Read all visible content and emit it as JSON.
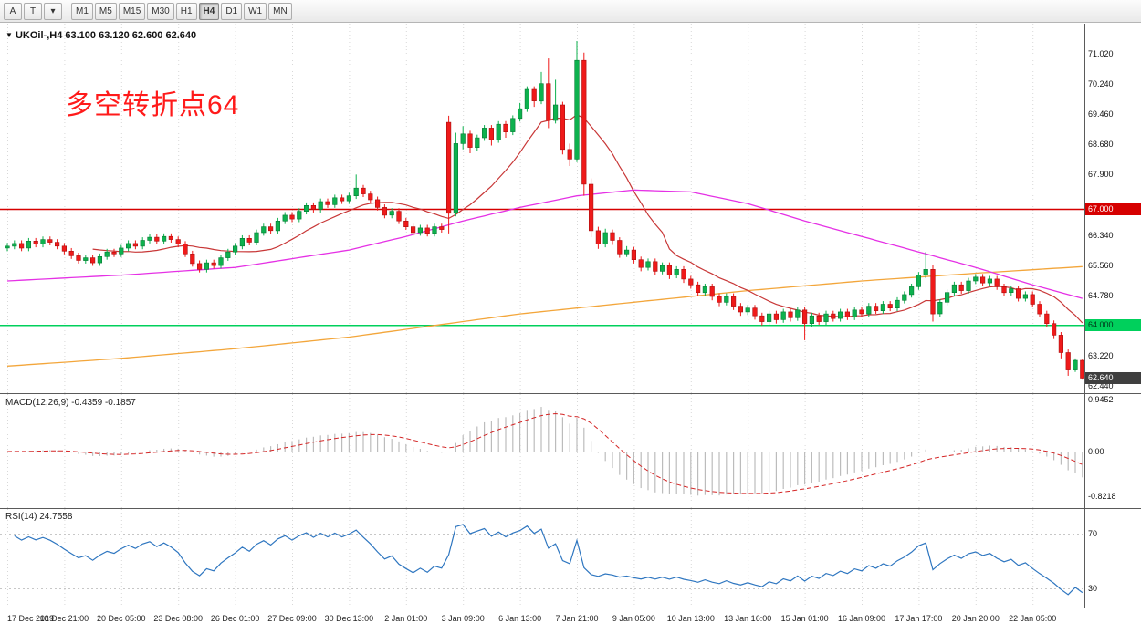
{
  "toolbar": {
    "tools": [
      {
        "name": "annotate",
        "label": "A"
      },
      {
        "name": "text",
        "label": "T"
      },
      {
        "name": "draw-dropdown",
        "label": "▾"
      }
    ],
    "timeframes": [
      "M1",
      "M5",
      "M15",
      "M30",
      "H1",
      "H4",
      "D1",
      "W1",
      "MN"
    ],
    "active_timeframe": "H4"
  },
  "chart": {
    "dropdown_icon": "▼",
    "symbol_line": "UKOil-,H4 63.100 63.120 62.600 62.640",
    "annotation": {
      "text": "多空转折点64",
      "color": "#ff1a1a"
    },
    "price_ticks": [
      {
        "v": 71.02,
        "label": "71.020"
      },
      {
        "v": 70.24,
        "label": "70.240"
      },
      {
        "v": 69.46,
        "label": "69.460"
      },
      {
        "v": 68.68,
        "label": "68.680"
      },
      {
        "v": 67.9,
        "label": "67.900"
      },
      {
        "v": 66.34,
        "label": "66.340"
      },
      {
        "v": 65.56,
        "label": "65.560"
      },
      {
        "v": 64.78,
        "label": "64.780"
      },
      {
        "v": 63.22,
        "label": "63.220"
      },
      {
        "v": 62.44,
        "label": "62.440"
      }
    ],
    "levels": [
      {
        "v": 67.0,
        "label": "67.000",
        "color": "#d60000",
        "text": "#ffffff"
      },
      {
        "v": 64.0,
        "label": "64.000",
        "color": "#00d05c",
        "text": "#00341a"
      }
    ],
    "current_price": {
      "v": 62.64,
      "label": "62.640",
      "color": "#3f3f3f",
      "text": "#ffffff"
    }
  },
  "series": {
    "candles": [
      [
        66.0,
        66.13,
        65.92,
        66.05
      ],
      [
        66.05,
        66.2,
        65.97,
        66.12
      ],
      [
        66.12,
        66.2,
        65.92,
        66.0
      ],
      [
        66.0,
        66.26,
        65.92,
        66.18
      ],
      [
        66.18,
        66.26,
        66.02,
        66.1
      ],
      [
        66.1,
        66.3,
        66.02,
        66.22
      ],
      [
        66.22,
        66.3,
        66.07,
        66.15
      ],
      [
        66.15,
        66.23,
        65.97,
        66.05
      ],
      [
        66.05,
        66.13,
        65.84,
        65.92
      ],
      [
        65.92,
        66.0,
        65.72,
        65.8
      ],
      [
        65.8,
        65.88,
        65.6,
        65.68
      ],
      [
        65.68,
        65.83,
        65.6,
        65.75
      ],
      [
        65.75,
        65.83,
        65.54,
        65.62
      ],
      [
        65.62,
        65.86,
        65.54,
        65.78
      ],
      [
        65.78,
        65.98,
        65.7,
        65.9
      ],
      [
        65.9,
        65.98,
        65.77,
        65.85
      ],
      [
        65.85,
        66.08,
        65.77,
        66.0
      ],
      [
        66.0,
        66.2,
        65.92,
        66.12
      ],
      [
        66.12,
        66.2,
        65.97,
        66.05
      ],
      [
        66.05,
        66.28,
        65.97,
        66.2
      ],
      [
        66.2,
        66.36,
        66.12,
        66.28
      ],
      [
        66.28,
        66.36,
        66.1,
        66.18
      ],
      [
        66.18,
        66.38,
        66.1,
        66.3
      ],
      [
        66.3,
        66.38,
        66.14,
        66.22
      ],
      [
        66.22,
        66.3,
        66.02,
        66.1
      ],
      [
        66.1,
        66.18,
        65.77,
        65.85
      ],
      [
        65.85,
        65.93,
        65.52,
        65.6
      ],
      [
        65.6,
        65.68,
        65.37,
        65.45
      ],
      [
        65.45,
        65.7,
        65.37,
        65.62
      ],
      [
        65.62,
        65.7,
        65.47,
        65.55
      ],
      [
        65.55,
        65.83,
        65.47,
        65.75
      ],
      [
        65.75,
        65.98,
        65.67,
        65.9
      ],
      [
        65.9,
        66.13,
        65.82,
        66.05
      ],
      [
        66.05,
        66.33,
        65.97,
        66.25
      ],
      [
        66.25,
        66.33,
        66.07,
        66.15
      ],
      [
        66.15,
        66.48,
        66.07,
        66.4
      ],
      [
        66.4,
        66.63,
        66.32,
        66.55
      ],
      [
        66.55,
        66.63,
        66.37,
        66.45
      ],
      [
        66.45,
        66.78,
        66.37,
        66.7
      ],
      [
        66.7,
        66.93,
        66.62,
        66.85
      ],
      [
        66.85,
        66.93,
        66.67,
        66.75
      ],
      [
        66.75,
        67.03,
        66.67,
        66.95
      ],
      [
        66.95,
        67.18,
        66.87,
        67.1
      ],
      [
        67.1,
        67.18,
        66.92,
        67.0
      ],
      [
        67.0,
        67.28,
        66.92,
        67.2
      ],
      [
        67.2,
        67.28,
        67.04,
        67.12
      ],
      [
        67.12,
        67.38,
        67.04,
        67.3
      ],
      [
        67.3,
        67.38,
        67.14,
        67.22
      ],
      [
        67.22,
        67.43,
        67.14,
        67.35
      ],
      [
        67.35,
        67.9,
        67.27,
        67.55
      ],
      [
        67.55,
        67.63,
        67.32,
        67.4
      ],
      [
        67.4,
        67.48,
        67.17,
        67.25
      ],
      [
        67.25,
        67.33,
        66.97,
        67.05
      ],
      [
        67.05,
        67.13,
        66.77,
        66.85
      ],
      [
        66.85,
        67.03,
        66.77,
        66.95
      ],
      [
        66.95,
        67.03,
        66.62,
        66.7
      ],
      [
        66.7,
        66.78,
        66.47,
        66.55
      ],
      [
        66.55,
        66.63,
        66.32,
        66.4
      ],
      [
        66.4,
        66.6,
        66.32,
        66.52
      ],
      [
        66.52,
        66.6,
        66.3,
        66.38
      ],
      [
        66.38,
        66.63,
        66.3,
        66.55
      ],
      [
        66.55,
        66.63,
        66.4,
        66.48
      ],
      [
        69.25,
        69.42,
        66.38,
        66.9
      ],
      [
        66.9,
        68.98,
        66.82,
        68.7
      ],
      [
        68.7,
        69.15,
        68.55,
        68.95
      ],
      [
        68.95,
        69.03,
        68.45,
        68.6
      ],
      [
        68.6,
        68.93,
        68.52,
        68.85
      ],
      [
        68.85,
        69.18,
        68.77,
        69.1
      ],
      [
        69.1,
        69.18,
        68.65,
        68.8
      ],
      [
        68.8,
        69.28,
        68.72,
        69.2
      ],
      [
        69.2,
        69.28,
        68.85,
        69.0
      ],
      [
        69.0,
        69.43,
        68.92,
        69.35
      ],
      [
        69.35,
        69.75,
        69.27,
        69.6
      ],
      [
        69.6,
        70.18,
        69.52,
        70.1
      ],
      [
        70.1,
        70.18,
        69.65,
        69.8
      ],
      [
        69.8,
        70.55,
        69.72,
        70.25
      ],
      [
        70.25,
        70.9,
        69.1,
        69.3
      ],
      [
        69.3,
        70.35,
        69.22,
        69.7
      ],
      [
        69.7,
        69.78,
        68.42,
        68.55
      ],
      [
        68.55,
        68.7,
        68.12,
        68.3
      ],
      [
        68.3,
        71.35,
        68.22,
        70.85
      ],
      [
        70.85,
        71.05,
        67.35,
        67.65
      ],
      [
        67.65,
        67.8,
        66.28,
        66.45
      ],
      [
        66.45,
        66.55,
        65.98,
        66.1
      ],
      [
        66.1,
        66.5,
        66.02,
        66.4
      ],
      [
        66.4,
        66.48,
        66.08,
        66.2
      ],
      [
        66.2,
        66.28,
        65.75,
        65.85
      ],
      [
        65.85,
        66.05,
        65.77,
        65.95
      ],
      [
        65.95,
        66.03,
        65.6,
        65.7
      ],
      [
        65.7,
        65.78,
        65.4,
        65.5
      ],
      [
        65.5,
        65.73,
        65.42,
        65.65
      ],
      [
        65.65,
        65.73,
        65.3,
        65.4
      ],
      [
        65.4,
        65.63,
        65.32,
        65.55
      ],
      [
        65.55,
        65.63,
        65.2,
        65.3
      ],
      [
        65.3,
        65.53,
        65.22,
        65.45
      ],
      [
        65.45,
        65.53,
        65.1,
        65.2
      ],
      [
        65.2,
        65.28,
        64.95,
        65.05
      ],
      [
        65.05,
        65.13,
        64.75,
        64.85
      ],
      [
        64.85,
        65.08,
        64.77,
        65.0
      ],
      [
        65.0,
        65.08,
        64.65,
        64.75
      ],
      [
        64.75,
        64.83,
        64.5,
        64.6
      ],
      [
        64.6,
        64.83,
        64.52,
        64.75
      ],
      [
        64.75,
        64.83,
        64.4,
        64.5
      ],
      [
        64.5,
        64.58,
        64.25,
        64.35
      ],
      [
        64.35,
        64.53,
        64.27,
        64.45
      ],
      [
        64.45,
        64.53,
        64.15,
        64.25
      ],
      [
        64.25,
        64.33,
        64.0,
        64.1
      ],
      [
        64.1,
        64.38,
        64.02,
        64.3
      ],
      [
        64.3,
        64.38,
        64.05,
        64.15
      ],
      [
        64.15,
        64.43,
        64.07,
        64.35
      ],
      [
        64.35,
        64.43,
        64.1,
        64.2
      ],
      [
        64.2,
        64.48,
        64.12,
        64.4
      ],
      [
        64.4,
        64.48,
        63.62,
        64.05
      ],
      [
        64.05,
        64.33,
        63.97,
        64.25
      ],
      [
        64.25,
        64.33,
        64.02,
        64.1
      ],
      [
        64.1,
        64.38,
        64.02,
        64.3
      ],
      [
        64.3,
        64.38,
        64.1,
        64.18
      ],
      [
        64.18,
        64.43,
        64.1,
        64.35
      ],
      [
        64.35,
        64.43,
        64.14,
        64.22
      ],
      [
        64.22,
        64.48,
        64.14,
        64.4
      ],
      [
        64.4,
        64.48,
        64.22,
        64.3
      ],
      [
        64.3,
        64.58,
        64.22,
        64.5
      ],
      [
        64.5,
        64.58,
        64.3,
        64.38
      ],
      [
        64.38,
        64.63,
        64.3,
        64.55
      ],
      [
        64.55,
        64.63,
        64.37,
        64.45
      ],
      [
        64.45,
        64.73,
        64.37,
        64.65
      ],
      [
        64.65,
        64.88,
        64.57,
        64.8
      ],
      [
        64.8,
        65.08,
        64.72,
        65.0
      ],
      [
        65.0,
        65.38,
        64.92,
        65.3
      ],
      [
        65.3,
        65.9,
        65.22,
        65.45
      ],
      [
        65.45,
        65.55,
        64.1,
        64.3
      ],
      [
        64.3,
        64.68,
        64.22,
        64.6
      ],
      [
        64.6,
        64.93,
        64.52,
        64.85
      ],
      [
        64.85,
        65.13,
        64.77,
        65.05
      ],
      [
        65.05,
        65.13,
        64.82,
        64.9
      ],
      [
        64.9,
        65.23,
        64.82,
        65.15
      ],
      [
        65.15,
        65.33,
        65.07,
        65.25
      ],
      [
        65.25,
        65.33,
        65.02,
        65.1
      ],
      [
        65.1,
        65.28,
        65.02,
        65.2
      ],
      [
        65.2,
        65.28,
        64.92,
        65.0
      ],
      [
        65.0,
        65.08,
        64.77,
        64.85
      ],
      [
        64.85,
        65.03,
        64.77,
        64.95
      ],
      [
        64.95,
        65.03,
        64.62,
        64.7
      ],
      [
        64.7,
        64.88,
        64.62,
        64.8
      ],
      [
        64.8,
        64.88,
        64.47,
        64.55
      ],
      [
        64.55,
        64.63,
        64.22,
        64.3
      ],
      [
        64.3,
        64.38,
        63.97,
        64.05
      ],
      [
        64.05,
        64.13,
        63.65,
        63.75
      ],
      [
        63.75,
        63.83,
        63.15,
        63.3
      ],
      [
        63.3,
        63.38,
        62.7,
        62.85
      ],
      [
        62.85,
        63.15,
        62.8,
        63.1
      ],
      [
        63.1,
        63.12,
        62.6,
        62.64
      ]
    ]
  },
  "overlays": {
    "ma_fast_period": 13,
    "magenta": [
      [
        0,
        65.15
      ],
      [
        16,
        65.3
      ],
      [
        32,
        65.5
      ],
      [
        48,
        65.95
      ],
      [
        56,
        66.3
      ],
      [
        64,
        66.7
      ],
      [
        72,
        67.05
      ],
      [
        80,
        67.35
      ],
      [
        88,
        67.5
      ],
      [
        96,
        67.45
      ],
      [
        104,
        67.15
      ],
      [
        112,
        66.7
      ],
      [
        120,
        66.3
      ],
      [
        128,
        65.9
      ],
      [
        136,
        65.5
      ],
      [
        144,
        65.05
      ],
      [
        151,
        64.7
      ]
    ],
    "orange": [
      [
        0,
        62.95
      ],
      [
        16,
        63.15
      ],
      [
        32,
        63.4
      ],
      [
        48,
        63.7
      ],
      [
        60,
        64.0
      ],
      [
        72,
        64.3
      ],
      [
        88,
        64.6
      ],
      [
        104,
        64.9
      ],
      [
        120,
        65.15
      ],
      [
        136,
        65.35
      ],
      [
        151,
        65.52
      ]
    ]
  },
  "macd": {
    "label": "MACD(12,26,9)",
    "values": "-0.4359 -0.1857",
    "fast": 12,
    "slow": 26,
    "signal": 9,
    "axis": [
      {
        "v": 0.9452,
        "label": "0.9452"
      },
      {
        "v": 0,
        "label": "0.00"
      },
      {
        "v": -0.8218,
        "label": "-0.8218"
      }
    ]
  },
  "rsi": {
    "label": "RSI(14)",
    "value": "24.7558",
    "period": 14,
    "levels": [
      {
        "v": 70,
        "label": "70"
      },
      {
        "v": 30,
        "label": "30"
      }
    ]
  },
  "time_axis": {
    "ticks": [
      {
        "i": 0,
        "label": "17 Dec 2019"
      },
      {
        "i": 8,
        "label": "18 Dec 21:00"
      },
      {
        "i": 16,
        "label": "20 Dec 05:00"
      },
      {
        "i": 24,
        "label": "23 Dec 08:00"
      },
      {
        "i": 32,
        "label": "26 Dec 01:00"
      },
      {
        "i": 40,
        "label": "27 Dec 09:00"
      },
      {
        "i": 48,
        "label": "30 Dec 13:00"
      },
      {
        "i": 56,
        "label": "2 Jan 01:00"
      },
      {
        "i": 64,
        "label": "3 Jan 09:00"
      },
      {
        "i": 72,
        "label": "6 Jan 13:00"
      },
      {
        "i": 80,
        "label": "7 Jan 21:00"
      },
      {
        "i": 88,
        "label": "9 Jan 05:00"
      },
      {
        "i": 96,
        "label": "10 Jan 13:00"
      },
      {
        "i": 104,
        "label": "13 Jan 16:00"
      },
      {
        "i": 112,
        "label": "15 Jan 01:00"
      },
      {
        "i": 120,
        "label": "16 Jan 09:00"
      },
      {
        "i": 128,
        "label": "17 Jan 17:00"
      },
      {
        "i": 136,
        "label": "20 Jan 20:00"
      },
      {
        "i": 144,
        "label": "22 Jan 05:00"
      }
    ]
  },
  "palette": {
    "up": "#0db14e",
    "up_dark": "#067a33",
    "down": "#ef1a1a",
    "down_dark": "#a90f0f",
    "ma_fast": "#c83737",
    "ma_magenta": "#e531e5",
    "ma_orange": "#f3a63b",
    "grid": "#d8d8d8",
    "macd_hist": "#bcbcbc",
    "macd_signal": "#d42626",
    "rsi_line": "#2e76c0",
    "rsi_level": "#c7c7c7"
  }
}
